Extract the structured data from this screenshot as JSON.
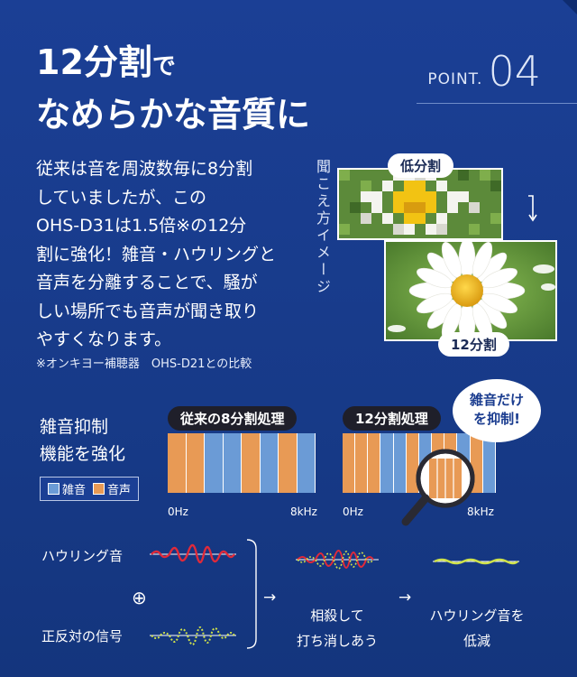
{
  "header": {
    "title_line1_main": "12分割",
    "title_line1_small": "で",
    "title_line2": "なめらかな音質に",
    "point_label": "POINT.",
    "point_number": "04"
  },
  "description": {
    "lines": [
      "従来は音を周波数毎に8分割",
      "していましたが、この",
      "OHS-D31は1.5倍※の12分",
      "割に強化！雑音・ハウリングと",
      "音声を分離することで、騒が",
      "しい場所でも音声が聞き取り",
      "やすくなります。"
    ],
    "note": "※オンキヨー補聴器　OHS-D21との比較"
  },
  "image_compare": {
    "vertical_label": "聞こえ方イメージ",
    "low_label": "低分割",
    "high_label": "12分割"
  },
  "noise": {
    "feature_line1": "雑音抑制",
    "feature_line2": "機能を強化",
    "legend_noise": "雑音",
    "legend_voice": "音声",
    "colors": {
      "noise": "#6b9bd6",
      "voice": "#e89a55"
    },
    "chart_old": {
      "title": "従来の8分割処理",
      "axis_start": "0Hz",
      "axis_end": "8kHz",
      "segments": [
        "voice",
        "voice",
        "noise",
        "noise",
        "voice",
        "noise",
        "voice",
        "noise"
      ]
    },
    "chart_new": {
      "title": "12分割処理",
      "axis_start": "0Hz",
      "axis_end": "8kHz",
      "segments": [
        "voice",
        "voice",
        "voice",
        "noise",
        "noise",
        "voice",
        "noise",
        "voice",
        "voice",
        "noise",
        "voice",
        "noise"
      ]
    },
    "bubble_line1": "雑音だけ",
    "bubble_line2": "を抑制!"
  },
  "howling": {
    "howl_label": "ハウリング音",
    "plus_symbol": "⊕",
    "anti_label": "正反対の信号",
    "arrow1": "→",
    "cancel_line1": "相殺して",
    "cancel_line2": "打ち消しあう",
    "arrow2": "→",
    "result_line1": "ハウリング音を",
    "result_line2": "低減"
  }
}
